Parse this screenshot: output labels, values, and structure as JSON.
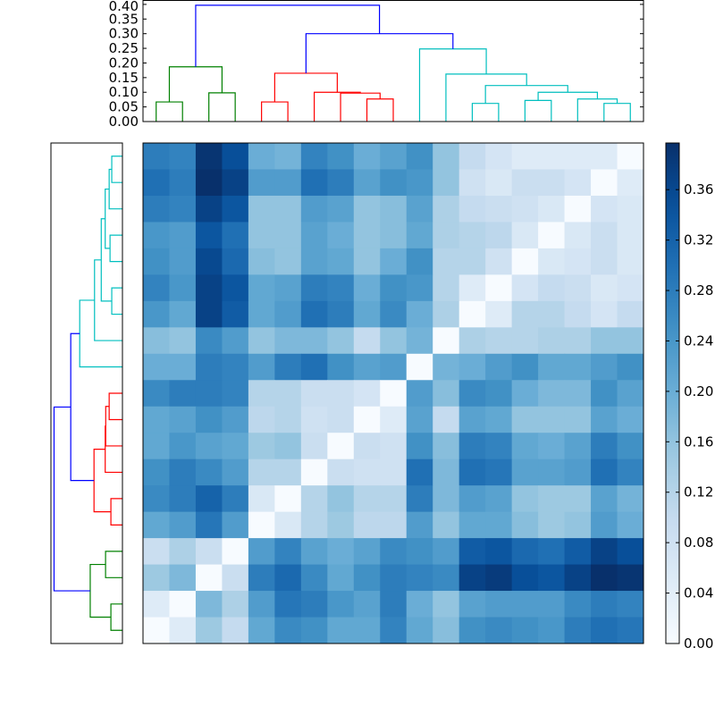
{
  "chart_data": {
    "type": "heatmap",
    "colormap": "Blues",
    "vlim": [
      0.0,
      0.397
    ],
    "colorbar": {
      "ticks": [
        "0.00",
        "0.04",
        "0.08",
        "0.12",
        "0.16",
        "0.20",
        "0.24",
        "0.28",
        "0.32",
        "0.36"
      ],
      "tick_values": [
        0,
        0.04,
        0.08,
        0.12,
        0.16,
        0.2,
        0.24,
        0.28,
        0.32,
        0.36
      ]
    },
    "matrix_rows_top_to_bottom": [
      [
        0.28,
        0.27,
        0.39,
        0.35,
        0.2,
        0.19,
        0.27,
        0.25,
        0.2,
        0.22,
        0.25,
        0.16,
        0.1,
        0.07,
        0.05,
        0.05,
        0.05,
        0.05,
        0.0
      ],
      [
        0.3,
        0.28,
        0.4,
        0.37,
        0.23,
        0.23,
        0.3,
        0.28,
        0.22,
        0.25,
        0.24,
        0.16,
        0.08,
        0.06,
        0.09,
        0.09,
        0.07,
        0.0,
        0.05
      ],
      [
        0.28,
        0.27,
        0.37,
        0.34,
        0.16,
        0.16,
        0.23,
        0.22,
        0.16,
        0.17,
        0.22,
        0.13,
        0.1,
        0.09,
        0.08,
        0.06,
        0.0,
        0.07,
        0.06
      ],
      [
        0.24,
        0.23,
        0.34,
        0.3,
        0.16,
        0.16,
        0.22,
        0.2,
        0.16,
        0.17,
        0.21,
        0.13,
        0.12,
        0.11,
        0.06,
        0.0,
        0.06,
        0.09,
        0.06
      ],
      [
        0.25,
        0.23,
        0.36,
        0.31,
        0.17,
        0.16,
        0.22,
        0.21,
        0.16,
        0.2,
        0.25,
        0.12,
        0.12,
        0.08,
        0.0,
        0.06,
        0.07,
        0.09,
        0.06
      ],
      [
        0.27,
        0.24,
        0.37,
        0.34,
        0.21,
        0.22,
        0.28,
        0.27,
        0.2,
        0.25,
        0.24,
        0.12,
        0.05,
        0.0,
        0.07,
        0.1,
        0.09,
        0.06,
        0.07
      ],
      [
        0.24,
        0.21,
        0.37,
        0.33,
        0.21,
        0.23,
        0.3,
        0.28,
        0.21,
        0.26,
        0.2,
        0.13,
        0.0,
        0.05,
        0.12,
        0.12,
        0.1,
        0.07,
        0.1
      ],
      [
        0.17,
        0.16,
        0.26,
        0.23,
        0.16,
        0.18,
        0.18,
        0.16,
        0.1,
        0.16,
        0.19,
        0.0,
        0.13,
        0.12,
        0.12,
        0.13,
        0.13,
        0.16,
        0.16
      ],
      [
        0.2,
        0.2,
        0.28,
        0.27,
        0.23,
        0.28,
        0.3,
        0.25,
        0.22,
        0.23,
        0.0,
        0.19,
        0.2,
        0.23,
        0.25,
        0.21,
        0.21,
        0.23,
        0.25
      ],
      [
        0.26,
        0.28,
        0.28,
        0.27,
        0.12,
        0.12,
        0.09,
        0.09,
        0.07,
        0.0,
        0.23,
        0.17,
        0.26,
        0.25,
        0.2,
        0.18,
        0.18,
        0.25,
        0.22
      ],
      [
        0.21,
        0.22,
        0.25,
        0.23,
        0.11,
        0.12,
        0.08,
        0.09,
        0.0,
        0.05,
        0.22,
        0.1,
        0.22,
        0.21,
        0.16,
        0.16,
        0.16,
        0.22,
        0.2
      ],
      [
        0.21,
        0.24,
        0.22,
        0.21,
        0.15,
        0.16,
        0.09,
        0.0,
        0.09,
        0.08,
        0.25,
        0.17,
        0.28,
        0.27,
        0.21,
        0.2,
        0.22,
        0.28,
        0.25
      ],
      [
        0.25,
        0.28,
        0.26,
        0.23,
        0.12,
        0.12,
        0.0,
        0.09,
        0.08,
        0.08,
        0.3,
        0.18,
        0.3,
        0.29,
        0.22,
        0.22,
        0.23,
        0.3,
        0.27
      ],
      [
        0.26,
        0.28,
        0.32,
        0.28,
        0.06,
        0.0,
        0.12,
        0.16,
        0.12,
        0.12,
        0.28,
        0.18,
        0.23,
        0.22,
        0.16,
        0.15,
        0.15,
        0.22,
        0.19
      ],
      [
        0.21,
        0.23,
        0.29,
        0.23,
        0.0,
        0.06,
        0.12,
        0.15,
        0.11,
        0.11,
        0.23,
        0.16,
        0.21,
        0.21,
        0.17,
        0.15,
        0.16,
        0.23,
        0.2
      ],
      [
        0.09,
        0.13,
        0.09,
        0.0,
        0.23,
        0.27,
        0.22,
        0.2,
        0.22,
        0.26,
        0.25,
        0.23,
        0.33,
        0.34,
        0.31,
        0.3,
        0.33,
        0.37,
        0.35
      ],
      [
        0.15,
        0.18,
        0.0,
        0.09,
        0.28,
        0.31,
        0.26,
        0.21,
        0.25,
        0.28,
        0.27,
        0.26,
        0.37,
        0.38,
        0.35,
        0.34,
        0.37,
        0.4,
        0.39
      ],
      [
        0.05,
        0.0,
        0.18,
        0.13,
        0.23,
        0.29,
        0.28,
        0.24,
        0.22,
        0.28,
        0.2,
        0.16,
        0.22,
        0.23,
        0.23,
        0.23,
        0.26,
        0.28,
        0.27
      ],
      [
        0.0,
        0.05,
        0.15,
        0.1,
        0.21,
        0.26,
        0.25,
        0.21,
        0.21,
        0.27,
        0.21,
        0.17,
        0.25,
        0.26,
        0.25,
        0.24,
        0.28,
        0.3,
        0.29
      ]
    ],
    "dendrogram": {
      "ylim": [
        0.0,
        0.415
      ],
      "yticks": [
        "0.00",
        "0.05",
        "0.10",
        "0.15",
        "0.20",
        "0.25",
        "0.30",
        "0.35",
        "0.40"
      ],
      "ytick_values": [
        0,
        0.05,
        0.1,
        0.15,
        0.2,
        0.25,
        0.3,
        0.35,
        0.4
      ],
      "leaf_count": 19,
      "cluster_colors": {
        "green": "#008000",
        "red": "#ff0000",
        "cyan": "#00bfbf",
        "blue": "#0000ff"
      },
      "links": [
        {
          "x": [
            5,
            5,
            15,
            15
          ],
          "y": [
            0,
            0.067,
            0.067,
            0
          ],
          "color": "#008000"
        },
        {
          "x": [
            25,
            25,
            35,
            35
          ],
          "y": [
            0,
            0.098,
            0.098,
            0
          ],
          "color": "#008000"
        },
        {
          "x": [
            10,
            10,
            30,
            30
          ],
          "y": [
            0.067,
            0.187,
            0.187,
            0.098
          ],
          "color": "#008000"
        },
        {
          "x": [
            45,
            45,
            55,
            55
          ],
          "y": [
            0,
            0.067,
            0.067,
            0
          ],
          "color": "#ff0000"
        },
        {
          "x": [
            85,
            85,
            95,
            95
          ],
          "y": [
            0,
            0.077,
            0.077,
            0
          ],
          "color": "#ff0000"
        },
        {
          "x": [
            75,
            75,
            90,
            90
          ],
          "y": [
            0,
            0.097,
            0.097,
            0.077
          ],
          "color": "#ff0000"
        },
        {
          "x": [
            65,
            65,
            82.5,
            82.5
          ],
          "y": [
            0,
            0.1,
            0.1,
            0.097
          ],
          "color": "#ff0000"
        },
        {
          "x": [
            50,
            50,
            73.75,
            73.75
          ],
          "y": [
            0.067,
            0.165,
            0.165,
            0.1
          ],
          "color": "#ff0000"
        },
        {
          "x": [
            125,
            125,
            135,
            135
          ],
          "y": [
            0,
            0.062,
            0.062,
            0
          ],
          "color": "#00bfbf"
        },
        {
          "x": [
            145,
            145,
            155,
            155
          ],
          "y": [
            0,
            0.072,
            0.072,
            0
          ],
          "color": "#00bfbf"
        },
        {
          "x": [
            175,
            175,
            185,
            185
          ],
          "y": [
            0,
            0.062,
            0.062,
            0
          ],
          "color": "#00bfbf"
        },
        {
          "x": [
            165,
            165,
            180,
            180
          ],
          "y": [
            0,
            0.077,
            0.077,
            0.062
          ],
          "color": "#00bfbf"
        },
        {
          "x": [
            150,
            150,
            172.5,
            172.5
          ],
          "y": [
            0.072,
            0.1,
            0.1,
            0.077
          ],
          "color": "#00bfbf"
        },
        {
          "x": [
            130,
            130,
            161.25,
            161.25
          ],
          "y": [
            0.062,
            0.123,
            0.123,
            0.1
          ],
          "color": "#00bfbf"
        },
        {
          "x": [
            115,
            115,
            145.625,
            145.625
          ],
          "y": [
            0,
            0.162,
            0.162,
            0.123
          ],
          "color": "#00bfbf"
        },
        {
          "x": [
            105,
            105,
            130.3125,
            130.3125
          ],
          "y": [
            0,
            0.248,
            0.248,
            0.162
          ],
          "color": "#00bfbf"
        },
        {
          "x": [
            61.875,
            61.875,
            117.66,
            117.66
          ],
          "y": [
            0.165,
            0.3,
            0.3,
            0.248
          ],
          "color": "#0000ff"
        },
        {
          "x": [
            20,
            20,
            89.77,
            89.77
          ],
          "y": [
            0.187,
            0.397,
            0.397,
            0.3
          ],
          "color": "#0000ff"
        }
      ]
    }
  }
}
